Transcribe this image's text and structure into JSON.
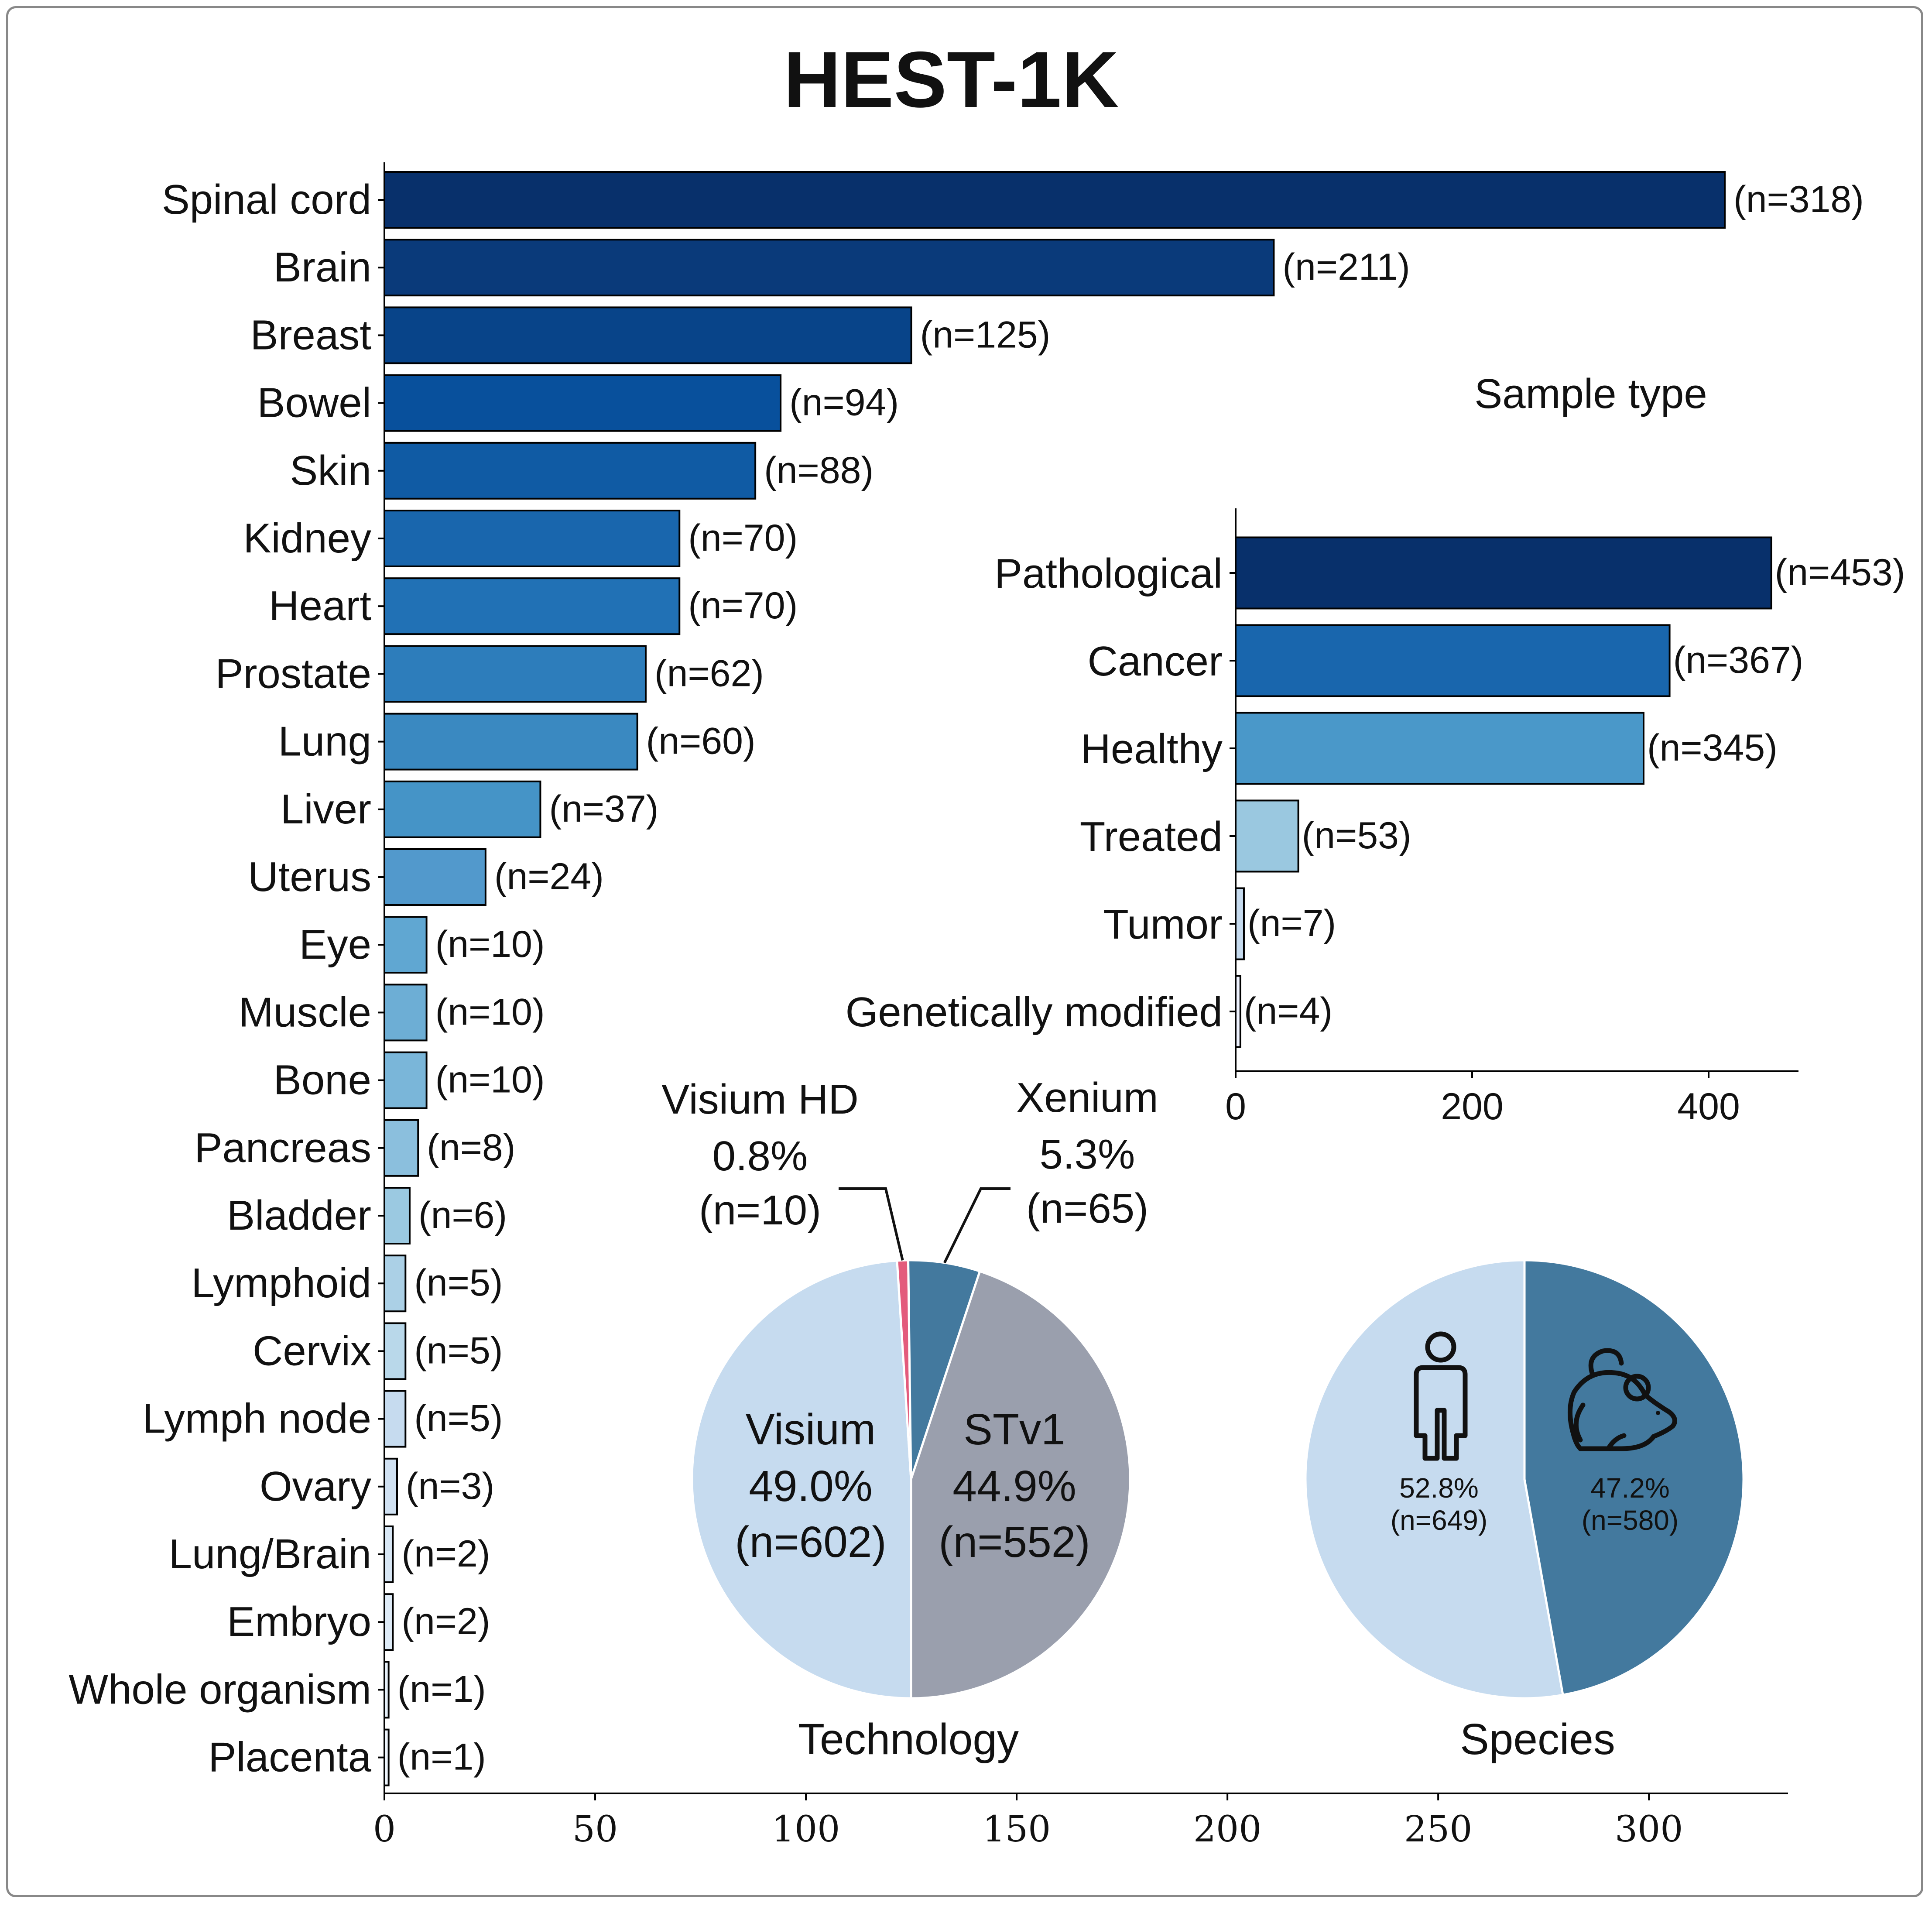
{
  "title": "HEST-1K",
  "chart_data": [
    {
      "type": "bar",
      "orientation": "horizontal",
      "title": "",
      "xlabel": "",
      "ylabel": "",
      "xlim": [
        0,
        333
      ],
      "xticks": [
        "0",
        "50",
        "100",
        "150",
        "200",
        "250",
        "300"
      ],
      "categories": [
        "Spinal cord",
        "Brain",
        "Breast",
        "Bowel",
        "Skin",
        "Kidney",
        "Heart",
        "Prostate",
        "Lung",
        "Liver",
        "Uterus",
        "Eye",
        "Muscle",
        "Bone",
        "Pancreas",
        "Bladder",
        "Lymphoid",
        "Cervix",
        "Lymph node",
        "Ovary",
        "Lung/Brain",
        "Embryo",
        "Whole organism",
        "Placenta"
      ],
      "values": [
        318,
        211,
        125,
        94,
        88,
        70,
        70,
        62,
        60,
        37,
        24,
        10,
        10,
        10,
        8,
        6,
        5,
        5,
        5,
        3,
        2,
        2,
        1,
        1
      ],
      "value_labels": [
        "(n=318)",
        "(n=211)",
        "(n=125)",
        "(n=94)",
        "(n=88)",
        "(n=70)",
        "(n=70)",
        "(n=62)",
        "(n=60)",
        "(n=37)",
        "(n=24)",
        "(n=10)",
        "(n=10)",
        "(n=10)",
        "(n=8)",
        "(n=6)",
        "(n=5)",
        "(n=5)",
        "(n=5)",
        "(n=3)",
        "(n=2)",
        "(n=2)",
        "(n=1)",
        "(n=1)"
      ],
      "colors": [
        "#08306b",
        "#0a3a7a",
        "#084489",
        "#08509c",
        "#105ba4",
        "#1966ad",
        "#2171b5",
        "#2d7dbb",
        "#3a89c1",
        "#4594c7",
        "#5299cc",
        "#60a7d2",
        "#6daed5",
        "#7ab6d9",
        "#8bbfdd",
        "#9bc9e1",
        "#abd0e6",
        "#b9d8ea",
        "#c6dbef",
        "#d0e1f2",
        "#d8e7f5",
        "#deebf7",
        "#e6f0f9",
        "#eef5fc"
      ]
    },
    {
      "type": "bar",
      "orientation": "horizontal",
      "title": "Sample type",
      "xlabel": "",
      "ylabel": "",
      "xlim": [
        0,
        476
      ],
      "xticks": [
        "0",
        "200",
        "400"
      ],
      "categories": [
        "Pathological",
        "Cancer",
        "Healthy",
        "Treated",
        "Tumor",
        "Genetically modified"
      ],
      "values": [
        453,
        367,
        345,
        53,
        7,
        4
      ],
      "value_labels": [
        "(n=453)",
        "(n=367)",
        "(n=345)",
        "(n=53)",
        "(n=7)",
        "(n=4)"
      ],
      "colors": [
        "#08306b",
        "#1966ad",
        "#4a98c9",
        "#9ac8e0",
        "#c6dbef",
        "#eff3ff"
      ]
    },
    {
      "type": "pie",
      "title": "Technology",
      "slices": [
        {
          "name": "Visium",
          "percent": "49.0%",
          "count": "(n=602)",
          "value": 602,
          "color": "#c6dbef"
        },
        {
          "name": "Visium HD",
          "percent": "0.8%",
          "count": "(n=10)",
          "value": 10,
          "color": "#e35b7c"
        },
        {
          "name": "Xenium",
          "percent": "5.3%",
          "count": "(n=65)",
          "value": 65,
          "color": "#43799e"
        },
        {
          "name": "STv1",
          "percent": "44.9%",
          "count": "(n=552)",
          "value": 552,
          "color": "#9a9fad"
        }
      ]
    },
    {
      "type": "pie",
      "title": "Species",
      "slices": [
        {
          "name": "human-icon",
          "percent": "52.8%",
          "count": "(n=649)",
          "value": 649,
          "color": "#c6dbef"
        },
        {
          "name": "mouse-icon",
          "percent": "47.2%",
          "count": "(n=580)",
          "value": 580,
          "color": "#43799e"
        }
      ]
    }
  ]
}
